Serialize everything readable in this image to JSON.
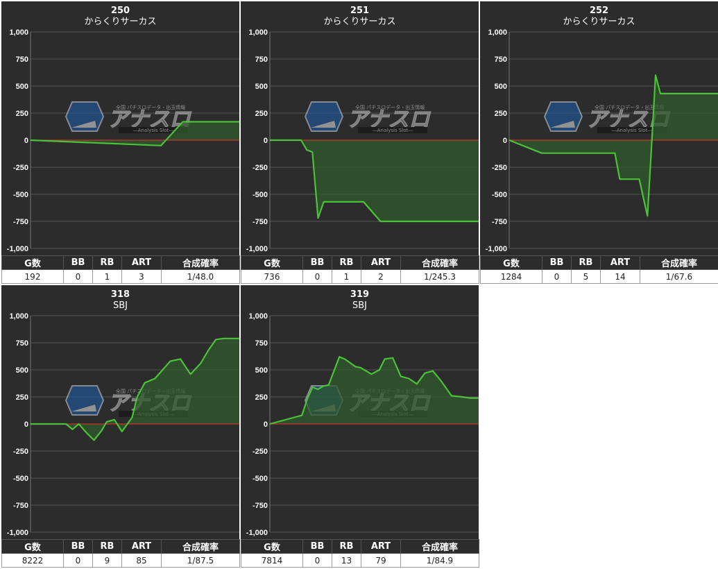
{
  "chart_data": [
    {
      "type": "area",
      "title": "250",
      "subtitle": "からくりサーカス",
      "ylim": [
        -1000,
        1000
      ],
      "yticks": [
        "1,000",
        "750",
        "500",
        "250",
        "0",
        "-250",
        "-500",
        "-750",
        "-1,000"
      ],
      "x": [
        0,
        120,
        140,
        192
      ],
      "values": [
        0,
        -50,
        170,
        170
      ]
    },
    {
      "type": "area",
      "title": "251",
      "subtitle": "からくりサーカス",
      "ylim": [
        -1000,
        1000
      ],
      "yticks": [
        "1,000",
        "750",
        "500",
        "250",
        "0",
        "-250",
        "-500",
        "-750",
        "-1,000"
      ],
      "x": [
        0,
        110,
        130,
        150,
        170,
        190,
        330,
        390,
        736
      ],
      "values": [
        0,
        0,
        -90,
        -110,
        -720,
        -570,
        -570,
        -750,
        -750
      ]
    },
    {
      "type": "area",
      "title": "252",
      "subtitle": "からくりサーカス",
      "ylim": [
        -1000,
        1000
      ],
      "yticks": [
        "1,000",
        "750",
        "500",
        "250",
        "0",
        "-250",
        "-500",
        "-750",
        "-1,000"
      ],
      "x": [
        0,
        200,
        650,
        680,
        800,
        850,
        870,
        900,
        930,
        1284
      ],
      "values": [
        0,
        -120,
        -120,
        -360,
        -360,
        -700,
        -200,
        600,
        430,
        430
      ]
    },
    {
      "type": "area",
      "title": "318",
      "subtitle": "SBJ",
      "ylim": [
        -1000,
        1000
      ],
      "yticks": [
        "1,000",
        "750",
        "500",
        "250",
        "0",
        "-250",
        "-500",
        "-750",
        "-1,000"
      ],
      "x": [
        0,
        1400,
        1650,
        1900,
        2200,
        2500,
        2800,
        3000,
        3300,
        3600,
        4000,
        4200,
        4500,
        4900,
        5200,
        5500,
        5900,
        6300,
        6700,
        7000,
        7300,
        7600,
        7900,
        8222
      ],
      "values": [
        0,
        0,
        -50,
        0,
        -80,
        -150,
        -60,
        20,
        40,
        -70,
        60,
        250,
        380,
        420,
        500,
        580,
        600,
        460,
        560,
        680,
        780,
        790,
        790,
        790
      ]
    },
    {
      "type": "area",
      "title": "319",
      "subtitle": "SBJ",
      "ylim": [
        -1000,
        1000
      ],
      "yticks": [
        "1,000",
        "750",
        "500",
        "250",
        "0",
        "-250",
        "-500",
        "-750",
        "-1,000"
      ],
      "x": [
        0,
        1200,
        1400,
        1600,
        1800,
        2000,
        2200,
        2600,
        2800,
        3200,
        3400,
        3800,
        4100,
        4300,
        4600,
        4900,
        5200,
        5500,
        5800,
        6100,
        6400,
        6800,
        7200,
        7500,
        7814
      ],
      "values": [
        0,
        80,
        230,
        340,
        320,
        350,
        360,
        620,
        600,
        530,
        520,
        460,
        500,
        600,
        610,
        440,
        420,
        370,
        470,
        490,
        400,
        260,
        250,
        240,
        240
      ]
    }
  ],
  "panels": [
    {
      "title": "250",
      "machine": "からくりサーカス",
      "headers": [
        "G数",
        "BB",
        "RB",
        "ART",
        "合成確率"
      ],
      "stats": [
        "192",
        "0",
        "1",
        "3",
        "1/48.0"
      ]
    },
    {
      "title": "251",
      "machine": "からくりサーカス",
      "headers": [
        "G数",
        "BB",
        "RB",
        "ART",
        "合成確率"
      ],
      "stats": [
        "736",
        "0",
        "1",
        "2",
        "1/245.3"
      ]
    },
    {
      "title": "252",
      "machine": "からくりサーカス",
      "headers": [
        "G数",
        "BB",
        "RB",
        "ART",
        "合成確率"
      ],
      "stats": [
        "1284",
        "0",
        "5",
        "14",
        "1/67.6"
      ]
    },
    {
      "title": "318",
      "machine": "SBJ",
      "headers": [
        "G数",
        "BB",
        "RB",
        "ART",
        "合成確率"
      ],
      "stats": [
        "8222",
        "0",
        "9",
        "85",
        "1/87.5"
      ]
    },
    {
      "title": "319",
      "machine": "SBJ",
      "headers": [
        "G数",
        "BB",
        "RB",
        "ART",
        "合成確率"
      ],
      "stats": [
        "7814",
        "0",
        "13",
        "79",
        "1/84.9"
      ]
    }
  ],
  "watermark": {
    "logo_text": "アナスロ",
    "tagline": "全国 パチスロデータ・出玉情報",
    "sub": "―Analysis Slot―",
    "icon": "anaslo-logo-icon"
  },
  "colors": {
    "panel_bg": "#2c2c2c",
    "line": "#4cc23a",
    "fill": "#2f5a2c",
    "zero_line": "#c0392b",
    "grid": "#555555"
  }
}
